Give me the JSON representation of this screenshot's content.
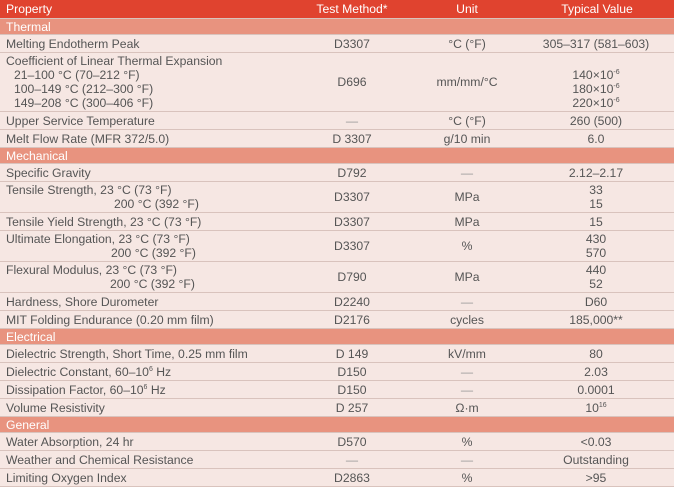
{
  "header": {
    "property": "Property",
    "test_method": "Test Method*",
    "unit": "Unit",
    "typical_value": "Typical Value"
  },
  "sections": {
    "thermal": "Thermal",
    "mechanical": "Mechanical",
    "electrical": "Electrical",
    "general": "General"
  },
  "rows": {
    "melting": {
      "property": "Melting Endotherm Peak",
      "method": "D3307",
      "unit": "°C (°F)",
      "value": "305–317 (581–603)"
    },
    "cte": {
      "property": "Coefficient of Linear Thermal Expansion",
      "sub1": "21–100 °C (70–212 °F)",
      "sub2": "100–149 °C (212–300 °F)",
      "sub3": "149–208 °C (300–406 °F)",
      "method": "D696",
      "unit": "mm/mm/°C",
      "v1": "140×10",
      "v2": "180×10",
      "v3": "220×10",
      "exp": "-6"
    },
    "upper_service": {
      "property": "Upper Service Temperature",
      "method": "—",
      "unit": "°C (°F)",
      "value": "260 (500)"
    },
    "mfr": {
      "property": "Melt Flow Rate (MFR 372/5.0)",
      "method": "D 3307",
      "unit": "g/10 min",
      "value": "6.0"
    },
    "specific_gravity": {
      "property": "Specific Gravity",
      "method": "D792",
      "unit": "—",
      "value": "2.12–2.17"
    },
    "tensile": {
      "property": "Tensile Strength, 23 °C (73 °F)",
      "sub": "200 °C (392 °F)",
      "method": "D3307",
      "unit": "MPa",
      "v1": "33",
      "v2": "15"
    },
    "tensile_yield": {
      "property": "Tensile Yield Strength, 23 °C (73 °F)",
      "method": "D3307",
      "unit": "MPa",
      "value": "15"
    },
    "elongation": {
      "property": "Ultimate Elongation, 23 °C (73 °F)",
      "sub": "200 °C (392 °F)",
      "method": "D3307",
      "unit": "%",
      "v1": "430",
      "v2": "570"
    },
    "flexural": {
      "property": "Flexural Modulus, 23 °C (73 °F)",
      "sub": "200 °C (392 °F)",
      "method": "D790",
      "unit": "MPa",
      "v1": "440",
      "v2": "52"
    },
    "hardness": {
      "property": "Hardness, Shore Durometer",
      "method": "D2240",
      "unit": "—",
      "value": "D60"
    },
    "mit": {
      "property": "MIT Folding Endurance (0.20 mm film)",
      "method": "D2176",
      "unit": "cycles",
      "value": "185,000**"
    },
    "dielectric_strength": {
      "property": "Dielectric Strength, Short Time, 0.25 mm film",
      "method": "D 149",
      "unit": "kV/mm",
      "value": "80"
    },
    "dielectric_constant": {
      "property": "Dielectric Constant, 60–10",
      "exp": "6",
      "suffix": " Hz",
      "method": "D150",
      "unit": "—",
      "value": "2.03"
    },
    "dissipation": {
      "property": "Dissipation Factor, 60–10",
      "exp": "6",
      "suffix": " Hz",
      "method": "D150",
      "unit": "—",
      "value": "0.0001"
    },
    "volume_resistivity": {
      "property": "Volume Resistivity",
      "method": "D 257",
      "unit": "Ω·m",
      "value": "10",
      "exp": "16"
    },
    "water": {
      "property": "Water Absorption, 24 hr",
      "method": "D570",
      "unit": "%",
      "value": "<0.03"
    },
    "weather": {
      "property": "Weather and Chemical Resistance",
      "method": "—",
      "unit": "—",
      "value": "Outstanding"
    },
    "loi": {
      "property": "Limiting Oxygen Index",
      "method": "D2863",
      "unit": "%",
      "value": ">95"
    }
  }
}
